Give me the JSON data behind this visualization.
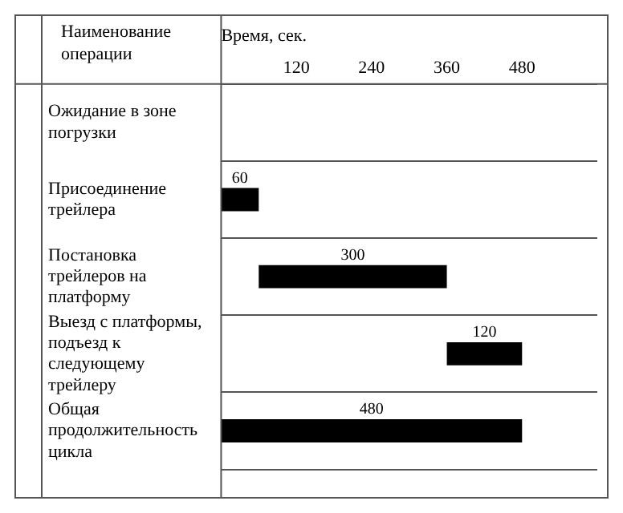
{
  "chart_data": {
    "type": "bar",
    "orientation": "horizontal",
    "xlabel": "Время, сек.",
    "ylabel": "Наименование операции",
    "categories": [
      "Ожидание в зоне погрузки",
      "Присоединение трейлера",
      "Постановка трейлеров на платформу",
      "Выезд с платформы, подъезд к следующему трейлеру",
      "Общая продолжительность цикла"
    ],
    "values": [
      null,
      60,
      300,
      120,
      480
    ],
    "base": [
      null,
      0,
      60,
      360,
      0
    ],
    "color": "#000000",
    "xlim": [
      0,
      600
    ],
    "xticks": [
      120,
      240,
      360,
      480
    ],
    "data_labels": true,
    "grid": "y",
    "legend": false
  }
}
